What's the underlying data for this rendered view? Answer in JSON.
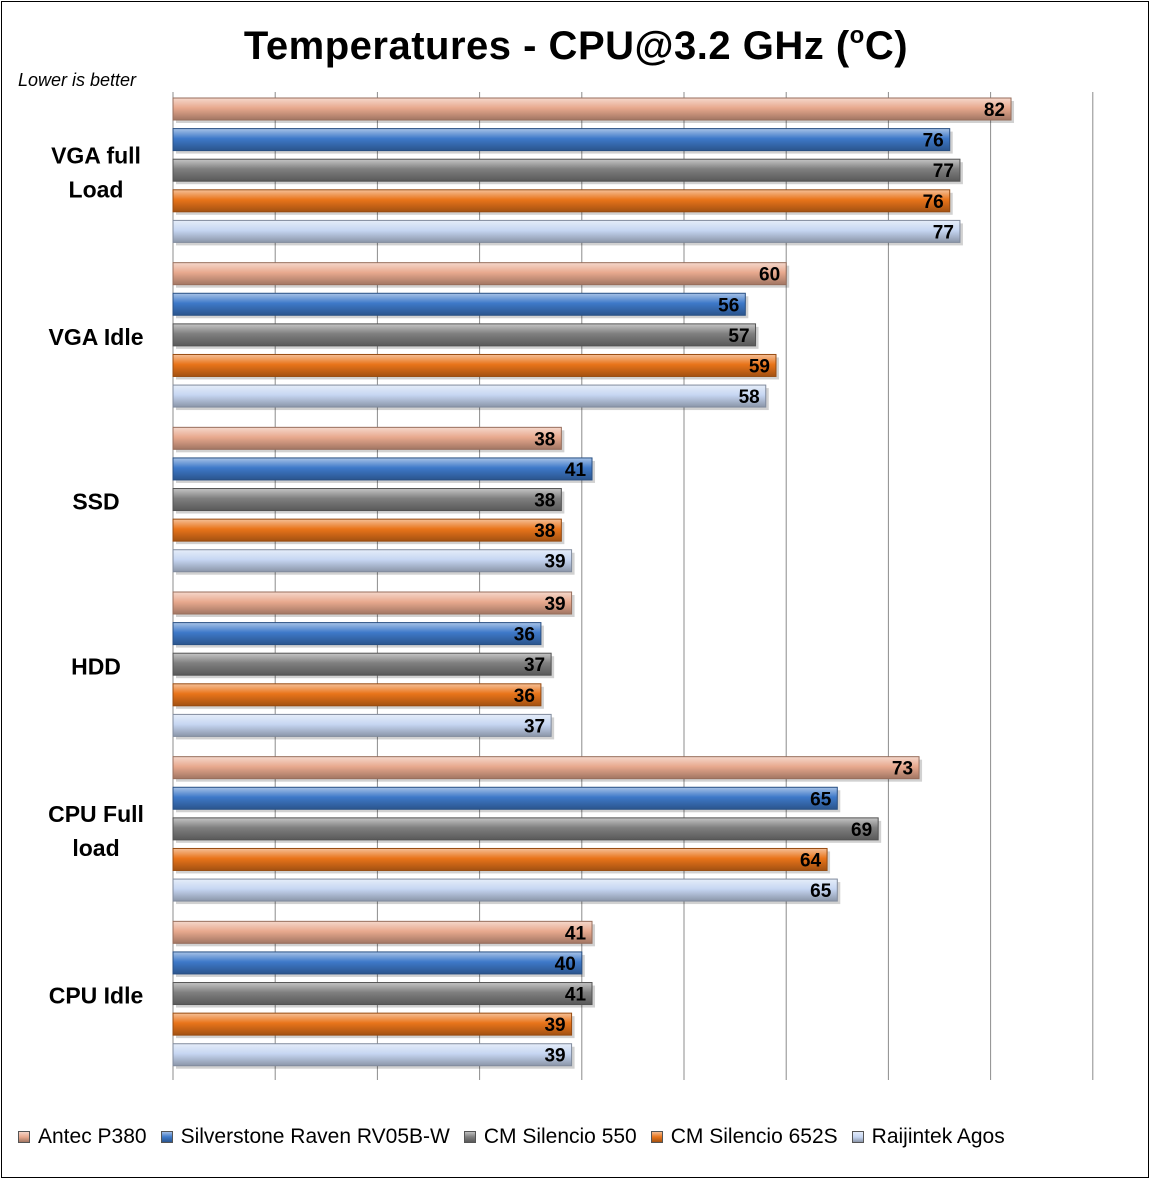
{
  "chart_data": {
    "type": "bar",
    "orientation": "horizontal",
    "title": "Temperatures - CPU@3.2 GHz (",
    "title_sup": "o",
    "title_suffix": "C)",
    "subtitle": "Lower is better",
    "categories": [
      "VGA full Load",
      "VGA Idle",
      "SSD",
      "HDD",
      "CPU Full load",
      "CPU Idle"
    ],
    "category_lines": [
      [
        "VGA full",
        "Load"
      ],
      [
        "VGA Idle"
      ],
      [
        "SSD"
      ],
      [
        "HDD"
      ],
      [
        "CPU Full",
        "load"
      ],
      [
        "CPU Idle"
      ]
    ],
    "series": [
      {
        "name": "Antec P380",
        "color": "#E8A98E",
        "values": [
          82,
          60,
          38,
          39,
          73,
          41
        ]
      },
      {
        "name": "Silverstone Raven RV05B-W",
        "color": "#3E79C9",
        "values": [
          76,
          56,
          41,
          36,
          65,
          40
        ]
      },
      {
        "name": "CM Silencio 550",
        "color": "#7F7F7F",
        "values": [
          77,
          57,
          38,
          37,
          69,
          41
        ]
      },
      {
        "name": "CM Silencio 652S",
        "color": "#E9741A",
        "values": [
          76,
          59,
          38,
          36,
          64,
          39
        ]
      },
      {
        "name": "Raijintek Agos",
        "color": "#C6D6F2",
        "values": [
          77,
          58,
          39,
          37,
          65,
          39
        ]
      }
    ],
    "xlim": [
      0,
      90
    ],
    "grid": true,
    "legend_position": "bottom"
  }
}
